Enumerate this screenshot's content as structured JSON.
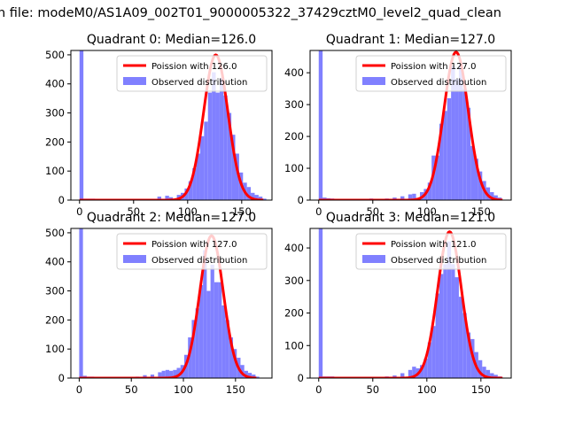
{
  "figure": {
    "suptitle": "n file: modeM0/AS1A09_002T01_9000005322_37429cztM0_level2_quad_clean"
  },
  "colors": {
    "poisson_line": "#ff0000",
    "observed_bar": "#8080ff",
    "axes": "#000000",
    "background": "#ffffff"
  },
  "chart_data": [
    {
      "type": "bar",
      "title": "Quadrant 0: Median=126.0",
      "xlim": [
        -8,
        178
      ],
      "ylim": [
        0,
        515
      ],
      "xticks": [
        0,
        50,
        100,
        150
      ],
      "yticks": [
        0,
        100,
        200,
        300,
        400,
        500
      ],
      "legend": {
        "position": "top-right",
        "entries": [
          "Poission with 126.0",
          "Observed distribution"
        ]
      },
      "poisson_mean": 126.0,
      "poisson_peak": 500,
      "observed": {
        "bin_width": 3.6,
        "bins": [
          [
            0,
            515
          ],
          [
            3.6,
            5
          ],
          [
            7.2,
            5
          ],
          [
            10.8,
            5
          ],
          [
            72,
            12
          ],
          [
            79.2,
            15
          ],
          [
            82.8,
            10
          ],
          [
            90,
            18
          ],
          [
            93.6,
            25
          ],
          [
            97.2,
            40
          ],
          [
            100.8,
            65
          ],
          [
            104.4,
            110
          ],
          [
            108,
            160
          ],
          [
            111.6,
            220
          ],
          [
            115.2,
            270
          ],
          [
            118.8,
            370
          ],
          [
            122.4,
            440
          ],
          [
            126,
            370
          ],
          [
            129.6,
            420
          ],
          [
            133.2,
            360
          ],
          [
            136.8,
            300
          ],
          [
            140.4,
            225
          ],
          [
            144,
            160
          ],
          [
            147.6,
            95
          ],
          [
            151.2,
            60
          ],
          [
            154.8,
            45
          ],
          [
            158.4,
            25
          ],
          [
            162,
            18
          ],
          [
            165.6,
            12
          ],
          [
            169.2,
            5
          ]
        ]
      }
    },
    {
      "type": "bar",
      "title": "Quadrant 1: Median=127.0",
      "xlim": [
        -8,
        178
      ],
      "ylim": [
        0,
        470
      ],
      "xticks": [
        0,
        50,
        100,
        150
      ],
      "yticks": [
        0,
        100,
        200,
        300,
        400
      ],
      "legend": {
        "position": "top-right",
        "entries": [
          "Poission with 127.0",
          "Observed distribution"
        ]
      },
      "poisson_mean": 127.0,
      "poisson_peak": 465,
      "observed": {
        "bin_width": 3.6,
        "bins": [
          [
            0,
            470
          ],
          [
            3.6,
            8
          ],
          [
            7.2,
            6
          ],
          [
            10.8,
            5
          ],
          [
            18,
            3
          ],
          [
            28.8,
            3
          ],
          [
            36,
            3
          ],
          [
            46.8,
            5
          ],
          [
            54,
            3
          ],
          [
            61.2,
            5
          ],
          [
            68.4,
            8
          ],
          [
            75.6,
            12
          ],
          [
            82.8,
            18
          ],
          [
            86.4,
            20
          ],
          [
            93.6,
            25
          ],
          [
            97.2,
            35
          ],
          [
            100.8,
            55
          ],
          [
            104.4,
            140
          ],
          [
            108,
            140
          ],
          [
            111.6,
            240
          ],
          [
            115.2,
            280
          ],
          [
            118.8,
            320
          ],
          [
            122.4,
            420
          ],
          [
            126,
            380
          ],
          [
            129.6,
            430
          ],
          [
            133.2,
            350
          ],
          [
            136.8,
            290
          ],
          [
            140.4,
            170
          ],
          [
            144,
            130
          ],
          [
            147.6,
            90
          ],
          [
            151.2,
            60
          ],
          [
            154.8,
            40
          ],
          [
            158.4,
            25
          ],
          [
            162,
            15
          ],
          [
            165.6,
            8
          ]
        ]
      }
    },
    {
      "type": "bar",
      "title": "Quadrant 2: Median=127.0",
      "xlim": [
        -8,
        185
      ],
      "ylim": [
        0,
        515
      ],
      "xticks": [
        0,
        50,
        100,
        150
      ],
      "yticks": [
        0,
        100,
        200,
        300,
        400,
        500
      ],
      "legend": {
        "position": "top-right",
        "entries": [
          "Poission with 127.0",
          "Observed distribution"
        ]
      },
      "poisson_mean": 127.0,
      "poisson_peak": 490,
      "observed": {
        "bin_width": 3.6,
        "bins": [
          [
            0,
            515
          ],
          [
            3.6,
            8
          ],
          [
            7.2,
            5
          ],
          [
            10.8,
            5
          ],
          [
            54,
            5
          ],
          [
            61.2,
            10
          ],
          [
            68.4,
            12
          ],
          [
            75.6,
            20
          ],
          [
            79.2,
            25
          ],
          [
            82.8,
            28
          ],
          [
            86.4,
            25
          ],
          [
            90,
            28
          ],
          [
            93.6,
            35
          ],
          [
            97.2,
            45
          ],
          [
            100.8,
            80
          ],
          [
            104.4,
            140
          ],
          [
            108,
            200
          ],
          [
            111.6,
            240
          ],
          [
            115.2,
            320
          ],
          [
            118.8,
            440
          ],
          [
            122.4,
            300
          ],
          [
            126,
            390
          ],
          [
            129.6,
            330
          ],
          [
            133.2,
            330
          ],
          [
            136.8,
            250
          ],
          [
            140.4,
            200
          ],
          [
            144,
            140
          ],
          [
            147.6,
            100
          ],
          [
            151.2,
            70
          ],
          [
            154.8,
            45
          ],
          [
            158.4,
            25
          ],
          [
            162,
            18
          ],
          [
            165.6,
            12
          ],
          [
            169.2,
            5
          ]
        ]
      }
    },
    {
      "type": "bar",
      "title": "Quadrant 3: Median=121.0",
      "xlim": [
        -8,
        178
      ],
      "ylim": [
        0,
        460
      ],
      "xticks": [
        0,
        50,
        100,
        150
      ],
      "yticks": [
        0,
        100,
        200,
        300,
        400
      ],
      "legend": {
        "position": "top-right",
        "entries": [
          "Poission with 121.0",
          "Observed distribution"
        ]
      },
      "poisson_mean": 121.0,
      "poisson_peak": 450,
      "observed": {
        "bin_width": 3.6,
        "bins": [
          [
            0,
            460
          ],
          [
            3.6,
            5
          ],
          [
            7.2,
            5
          ],
          [
            10.8,
            5
          ],
          [
            61.2,
            5
          ],
          [
            68.4,
            8
          ],
          [
            75.6,
            15
          ],
          [
            82.8,
            25
          ],
          [
            86.4,
            35
          ],
          [
            90,
            30
          ],
          [
            93.6,
            40
          ],
          [
            97.2,
            60
          ],
          [
            100.8,
            110
          ],
          [
            104.4,
            160
          ],
          [
            108,
            260
          ],
          [
            111.6,
            320
          ],
          [
            115.2,
            350
          ],
          [
            118.8,
            420
          ],
          [
            122.4,
            350
          ],
          [
            126,
            310
          ],
          [
            129.6,
            250
          ],
          [
            133.2,
            200
          ],
          [
            136.8,
            140
          ],
          [
            140.4,
            120
          ],
          [
            144,
            80
          ],
          [
            147.6,
            55
          ],
          [
            151.2,
            35
          ],
          [
            154.8,
            25
          ],
          [
            158.4,
            15
          ],
          [
            162,
            10
          ],
          [
            165.6,
            5
          ]
        ]
      }
    }
  ]
}
